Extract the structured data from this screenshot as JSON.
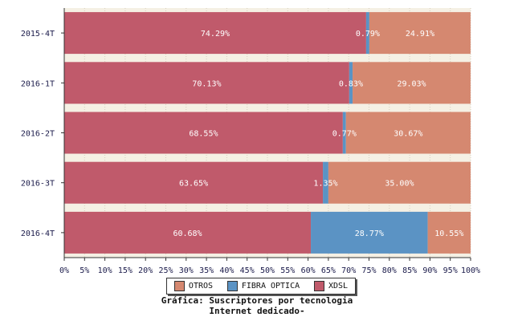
{
  "chart_data": {
    "type": "bar",
    "orientation": "horizontal",
    "stacked": true,
    "normalized": true,
    "title": "Gráfica: Suscriptores por tecnologia",
    "subtitle": "Internet dedicado-",
    "categories": [
      "2015-4T",
      "2016-1T",
      "2016-2T",
      "2016-3T",
      "2016-4T"
    ],
    "series": [
      {
        "name": "XDSL",
        "color": "#c05a6b",
        "values": [
          74.29,
          70.13,
          68.55,
          63.65,
          60.68
        ],
        "labels": [
          "74.29%",
          "70.13%",
          "68.55%",
          "63.65%",
          "60.68%"
        ]
      },
      {
        "name": "FIBRA OPTICA",
        "color": "#5b93c4",
        "values": [
          0.79,
          0.83,
          0.77,
          1.35,
          28.77
        ],
        "labels": [
          "0.79%",
          "0.83%",
          "0.77%",
          "1.35%",
          "28.77%"
        ]
      },
      {
        "name": "OTROS",
        "color": "#d58870",
        "values": [
          24.91,
          29.03,
          30.67,
          35.0,
          10.55
        ],
        "labels": [
          "24.91%",
          "29.03%",
          "30.67%",
          "35.00%",
          "10.55%"
        ]
      }
    ],
    "xticks": [
      "0%",
      "5%",
      "10%",
      "15%",
      "20%",
      "25%",
      "30%",
      "35%",
      "40%",
      "45%",
      "50%",
      "55%",
      "60%",
      "65%",
      "70%",
      "75%",
      "80%",
      "85%",
      "90%",
      "95%",
      "100%"
    ],
    "xlim": [
      0,
      100
    ],
    "legend": {
      "placement": "bottom",
      "items": [
        {
          "label": "OTROS",
          "color": "#d58870"
        },
        {
          "label": "FIBRA OPTICA",
          "color": "#5b93c4"
        },
        {
          "label": "XDSL",
          "color": "#c05a6b"
        }
      ]
    },
    "grid": true
  }
}
